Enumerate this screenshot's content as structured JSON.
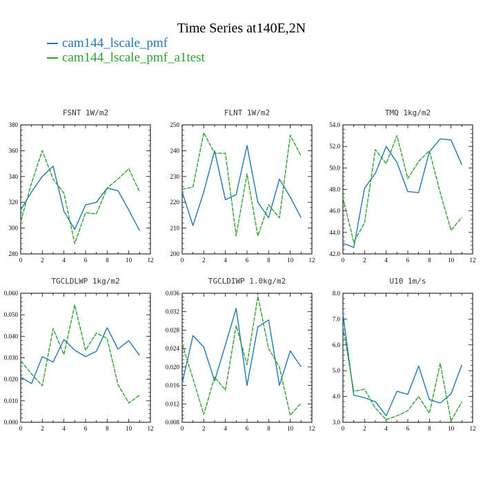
{
  "title": "Time Series at140E,2N",
  "legend": [
    {
      "label": "cam144_lscale_pmf",
      "color": "#1f77b4"
    },
    {
      "label": "cam144_lscale_pmf_a1test",
      "color": "#2ca02c"
    }
  ],
  "chart_data": [
    {
      "type": "line",
      "title": "FSNT   1W/m2",
      "x": [
        0,
        1,
        2,
        3,
        4,
        5,
        6,
        7,
        8,
        9,
        10,
        11
      ],
      "xlim": [
        0,
        12
      ],
      "ylim": [
        280,
        380
      ],
      "xticks": [
        "0",
        "2",
        "4",
        "6",
        "8",
        "10",
        "12"
      ],
      "yticks": [
        "280",
        "300",
        "320",
        "340",
        "360",
        "380"
      ],
      "series": [
        {
          "name": "cam144_lscale_pmf",
          "color": "#1f77b4",
          "values": [
            314,
            328,
            340,
            348,
            313,
            299,
            318,
            320,
            331,
            329,
            314,
            298
          ]
        },
        {
          "name": "cam144_lscale_pmf_a1test",
          "color": "#2ca02c",
          "values": [
            305,
            335,
            360,
            338,
            327,
            288,
            312,
            311,
            331,
            338,
            346,
            328
          ]
        }
      ]
    },
    {
      "type": "line",
      "title": "FLNT   1W/m2",
      "x": [
        0,
        1,
        2,
        3,
        4,
        5,
        6,
        7,
        8,
        9,
        10,
        11
      ],
      "xlim": [
        0,
        12
      ],
      "ylim": [
        200,
        250
      ],
      "xticks": [
        "0",
        "2",
        "4",
        "6",
        "8",
        "10",
        "12"
      ],
      "yticks": [
        "200",
        "210",
        "220",
        "230",
        "240",
        "250"
      ],
      "series": [
        {
          "name": "cam144_lscale_pmf",
          "color": "#1f77b4",
          "values": [
            224,
            211,
            224,
            240,
            221,
            223,
            242,
            220,
            214,
            229,
            222,
            214
          ]
        },
        {
          "name": "cam144_lscale_pmf_a1test",
          "color": "#2ca02c",
          "values": [
            225,
            226,
            247,
            239,
            239,
            207,
            231,
            207,
            219,
            214,
            246,
            238
          ]
        }
      ]
    },
    {
      "type": "line",
      "title": "TMQ   1kg/m2",
      "x": [
        0,
        1,
        2,
        3,
        4,
        5,
        6,
        7,
        8,
        9,
        10,
        11
      ],
      "xlim": [
        0,
        12
      ],
      "ylim": [
        42,
        54
      ],
      "xticks": [
        "0",
        "2",
        "4",
        "6",
        "8",
        "10",
        "12"
      ],
      "yticks": [
        "42.0",
        "44.0",
        "46.0",
        "48.0",
        "50.0",
        "52.0",
        "54.0"
      ],
      "series": [
        {
          "name": "cam144_lscale_pmf",
          "color": "#1f77b4",
          "values": [
            43.0,
            42.6,
            48.1,
            49.5,
            52.0,
            50.5,
            47.8,
            47.7,
            51.5,
            52.7,
            52.6,
            50.3
          ]
        },
        {
          "name": "cam144_lscale_pmf_a1test",
          "color": "#2ca02c",
          "values": [
            47.2,
            43.1,
            44.9,
            51.7,
            50.4,
            53.0,
            49.0,
            50.6,
            51.6,
            47.7,
            44.2,
            45.4
          ]
        }
      ]
    },
    {
      "type": "line",
      "title": "TGCLDLWP   1kg/m2",
      "x": [
        0,
        1,
        2,
        3,
        4,
        5,
        6,
        7,
        8,
        9,
        10,
        11
      ],
      "xlim": [
        0,
        12
      ],
      "ylim": [
        0,
        0.06
      ],
      "xticks": [
        "0",
        "2",
        "4",
        "6",
        "8",
        "10",
        "12"
      ],
      "yticks": [
        "0.000",
        "0.010",
        "0.020",
        "0.030",
        "0.040",
        "0.050",
        "0.060"
      ],
      "series": [
        {
          "name": "cam144_lscale_pmf",
          "color": "#1f77b4",
          "values": [
            0.021,
            0.018,
            0.0305,
            0.028,
            0.0385,
            0.0335,
            0.0305,
            0.033,
            0.044,
            0.034,
            0.038,
            0.031
          ]
        },
        {
          "name": "cam144_lscale_pmf_a1test",
          "color": "#2ca02c",
          "values": [
            0.0285,
            0.0225,
            0.017,
            0.0435,
            0.0315,
            0.0545,
            0.0335,
            0.0415,
            0.039,
            0.0175,
            0.009,
            0.0125
          ]
        }
      ]
    },
    {
      "type": "line",
      "title": "TGCLDIWP   1.0kg/m2",
      "x": [
        0,
        1,
        2,
        3,
        4,
        5,
        6,
        7,
        8,
        9,
        10,
        11
      ],
      "xlim": [
        0,
        12
      ],
      "ylim": [
        0.008,
        0.036
      ],
      "xticks": [
        "0",
        "2",
        "4",
        "6",
        "8",
        "10",
        "12"
      ],
      "yticks": [
        "0.008",
        "0.012",
        "0.016",
        "0.020",
        "0.024",
        "0.028",
        "0.032",
        "0.036"
      ],
      "series": [
        {
          "name": "cam144_lscale_pmf",
          "color": "#1f77b4",
          "values": [
            0.0165,
            0.0268,
            0.0243,
            0.017,
            0.0248,
            0.0327,
            0.016,
            0.0287,
            0.0302,
            0.016,
            0.0235,
            0.02
          ]
        },
        {
          "name": "cam144_lscale_pmf_a1test",
          "color": "#2ca02c",
          "values": [
            0.025,
            0.0175,
            0.0097,
            0.0178,
            0.015,
            0.029,
            0.0205,
            0.0353,
            0.024,
            0.02,
            0.0095,
            0.0122
          ]
        }
      ]
    },
    {
      "type": "line",
      "title": "U10   1m/s",
      "x": [
        0,
        1,
        2,
        3,
        4,
        5,
        6,
        7,
        8,
        9,
        10,
        11
      ],
      "xlim": [
        0,
        12
      ],
      "ylim": [
        3,
        8
      ],
      "xticks": [
        "0",
        "2",
        "4",
        "6",
        "8",
        "10",
        "12"
      ],
      "yticks": [
        "3.0",
        "4.0",
        "5.0",
        "6.0",
        "7.0",
        "8.0"
      ],
      "series": [
        {
          "name": "cam144_lscale_pmf",
          "color": "#1f77b4",
          "values": [
            7.2,
            4.05,
            3.95,
            3.8,
            3.25,
            4.2,
            4.08,
            5.18,
            3.88,
            3.75,
            4.1,
            5.22
          ]
        },
        {
          "name": "cam144_lscale_pmf_a1test",
          "color": "#2ca02c",
          "values": [
            6.7,
            4.2,
            4.28,
            3.55,
            3.1,
            3.25,
            3.45,
            4.0,
            3.35,
            5.28,
            3.05,
            3.8
          ]
        }
      ]
    }
  ]
}
